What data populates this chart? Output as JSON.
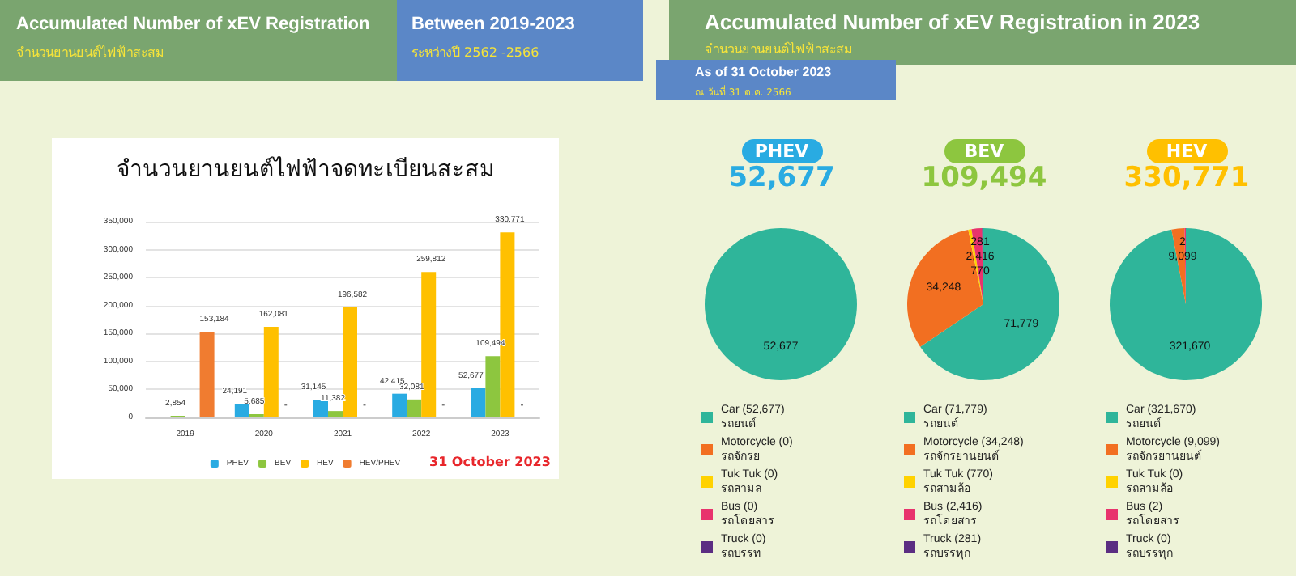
{
  "chart_data": [
    {
      "type": "bar",
      "title": "จำนวนยานยนต์ไฟฟ้าจดทะเบียนสะสม",
      "annotations": [
        "Accumulated Number of xEV Registration",
        "จำนวนยานยนต์ไฟฟ้าสะสม",
        "Between 2019-2023",
        "ระหว่างปี 2562 -2566",
        "31 October 2023",
        {
          "text": "-",
          "x": "2020",
          "y": 0
        },
        {
          "text": "-",
          "x": "2021",
          "y": 0
        },
        {
          "text": "-",
          "x": "2022",
          "y": 0
        },
        {
          "text": "-",
          "x": "2023",
          "y": 0
        }
      ],
      "categories": [
        "2019",
        "2020",
        "2021",
        "2022",
        "2023"
      ],
      "series": [
        {
          "name": "PHEV",
          "color": "#29abe2",
          "values": [
            null,
            24191,
            31145,
            42415,
            52677
          ],
          "value_labels": [
            null,
            "24,191",
            "31,145",
            "42,415",
            "52,677"
          ]
        },
        {
          "name": "BEV",
          "color": "#8dc63f",
          "values": [
            2854,
            5685,
            11382,
            32081,
            109494
          ],
          "value_labels": [
            "2,854",
            "5,685",
            "11,382",
            "32,081",
            "109,494"
          ]
        },
        {
          "name": "HEV",
          "color": "#ffc000",
          "values": [
            null,
            162081,
            196582,
            259812,
            330771
          ],
          "value_labels": [
            null,
            "162,081",
            "196,582",
            "259,812",
            "330,771"
          ]
        },
        {
          "name": "HEV/PHEV",
          "color": "#f07c30",
          "values": [
            153184,
            null,
            null,
            null,
            null
          ],
          "value_labels": [
            "153,184",
            null,
            null,
            null,
            null
          ]
        }
      ],
      "ylim": [
        0,
        350000
      ],
      "yticks": [
        0,
        {
          "value": 50000,
          "label": "50,000"
        },
        {
          "value": 100000,
          "label": "100,000"
        },
        {
          "value": 150000,
          "label": "150,000"
        },
        {
          "value": 200000,
          "label": "200,000"
        },
        {
          "value": 250000,
          "label": "250,000"
        },
        {
          "value": 300000,
          "label": "300,000"
        },
        {
          "value": 350000,
          "label": "350,000"
        }
      ],
      "grid": "y",
      "legend": "bottom"
    },
    {
      "type": "pie",
      "title": "PHEV",
      "subtitle": "52,677",
      "annotations": [
        "Accumulated Number of xEV Registration in 2023",
        "จำนวนยานยนต์ไฟฟ้าสะสม",
        "As of 31 October 2023",
        "ณ วันที่ 31 ต.ค. 2566"
      ],
      "categories": [
        "Car (52,677)\nรถยนต์",
        "Motorcycle (0)\nรถจักรย",
        "Tuk Tuk (0)\nรถสามล",
        "Bus (0)\nรถโดยสาร",
        "Truck (0)\nรถบรรท"
      ],
      "values": [
        52677,
        0,
        0,
        0,
        0
      ],
      "value_labels": [
        "52,677",
        null,
        null,
        null,
        null
      ],
      "colors": [
        "#2fb59a",
        "#f26f21",
        "#ffd200",
        "#e8336d",
        "#5b2d82"
      ],
      "legend": "bottom"
    },
    {
      "type": "pie",
      "title": "BEV",
      "subtitle": "109,494",
      "categories": [
        "Car (71,779)\nรถยนต์",
        "Motorcycle (34,248)\nรถจักรยานยนต์",
        "Tuk Tuk (770)\nรถสามล้อ",
        "Bus (2,416)\nรถโดยสาร",
        "Truck (281)\nรถบรรทุก"
      ],
      "values": [
        71779,
        34248,
        770,
        2416,
        281
      ],
      "value_labels": [
        "71,779",
        "34,248",
        "770",
        "2,416",
        "281"
      ],
      "colors": [
        "#2fb59a",
        "#f26f21",
        "#ffd200",
        "#e8336d",
        "#5b2d82"
      ],
      "legend": "bottom"
    },
    {
      "type": "pie",
      "title": "HEV",
      "subtitle": "330,771",
      "categories": [
        "Car (321,670)\nรถยนต์",
        "Motorcycle (9,099)\nรถจักรยานยนต์",
        "Tuk Tuk (0)\nรถสามล้อ",
        "Bus (2)\nรถโดยสาร",
        "Truck (0)\nรถบรรทุก"
      ],
      "values": [
        321670,
        9099,
        0,
        2,
        0
      ],
      "value_labels": [
        "321,670",
        "9,099",
        null,
        "2",
        null
      ],
      "colors": [
        "#2fb59a",
        "#f26f21",
        "#ffd200",
        "#e8336d",
        "#5b2d82"
      ],
      "legend": "bottom"
    }
  ]
}
